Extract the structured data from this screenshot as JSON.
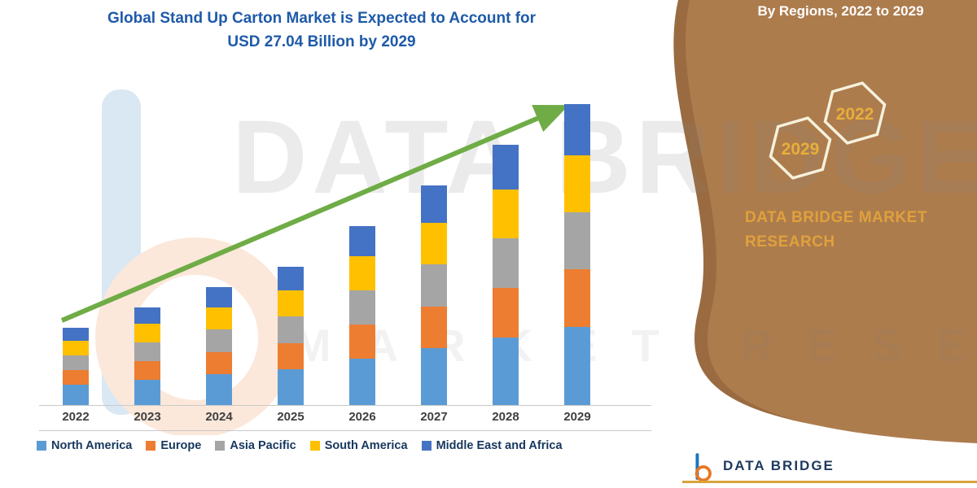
{
  "title": {
    "line1": "Global Stand Up Carton Market is Expected to Account for",
    "line2": "USD 27.04 Billion by 2029"
  },
  "side_panel": {
    "heading": "By Regions, 2022 to 2029",
    "hex_badges": [
      {
        "year": "2029"
      },
      {
        "year": "2022"
      }
    ],
    "brand_line1": "DATA BRIDGE MARKET",
    "brand_line2": "RESEARCH",
    "panel_color": "#AD7C4D",
    "panel_edge_color": "#9A6B40",
    "gold_color": "#DFA13C"
  },
  "watermark": {
    "line1": "DATA BRIDGE",
    "line2": "MARKET RESEARCH"
  },
  "footer": {
    "brand": "DATA BRIDGE"
  },
  "chart_data": {
    "type": "bar",
    "stacked": true,
    "title": "Global Stand Up Carton Market is Expected to Account for USD 27.04 Billion by 2029",
    "unit": "USD Billion",
    "categories": [
      "2022",
      "2023",
      "2024",
      "2025",
      "2026",
      "2027",
      "2028",
      "2029"
    ],
    "series": [
      {
        "name": "North America",
        "color": "#5B9BD5",
        "values": [
          1.8,
          2.28,
          2.76,
          3.23,
          4.18,
          5.13,
          6.08,
          7.03
        ]
      },
      {
        "name": "Europe",
        "color": "#ED7D31",
        "values": [
          1.32,
          1.67,
          2.01,
          2.36,
          3.06,
          3.75,
          4.44,
          5.14
        ]
      },
      {
        "name": "Asia Pacific",
        "color": "#A5A5A5",
        "values": [
          1.32,
          1.67,
          2.01,
          2.36,
          3.06,
          3.75,
          4.44,
          5.14
        ]
      },
      {
        "name": "South America",
        "color": "#FFC000",
        "values": [
          1.32,
          1.67,
          2.01,
          2.36,
          3.06,
          3.75,
          4.44,
          5.14
        ]
      },
      {
        "name": "Middle East and Africa",
        "color": "#4472C4",
        "values": [
          1.18,
          1.49,
          1.8,
          2.11,
          2.73,
          3.35,
          3.98,
          4.59
        ]
      }
    ],
    "totals": [
      6.94,
      8.78,
      10.59,
      12.42,
      16.09,
      19.73,
      23.38,
      27.04
    ],
    "ylim": [
      0,
      28
    ],
    "grid": false,
    "legend_position": "bottom",
    "annotations": [
      "green upward trend arrow across bars"
    ]
  }
}
